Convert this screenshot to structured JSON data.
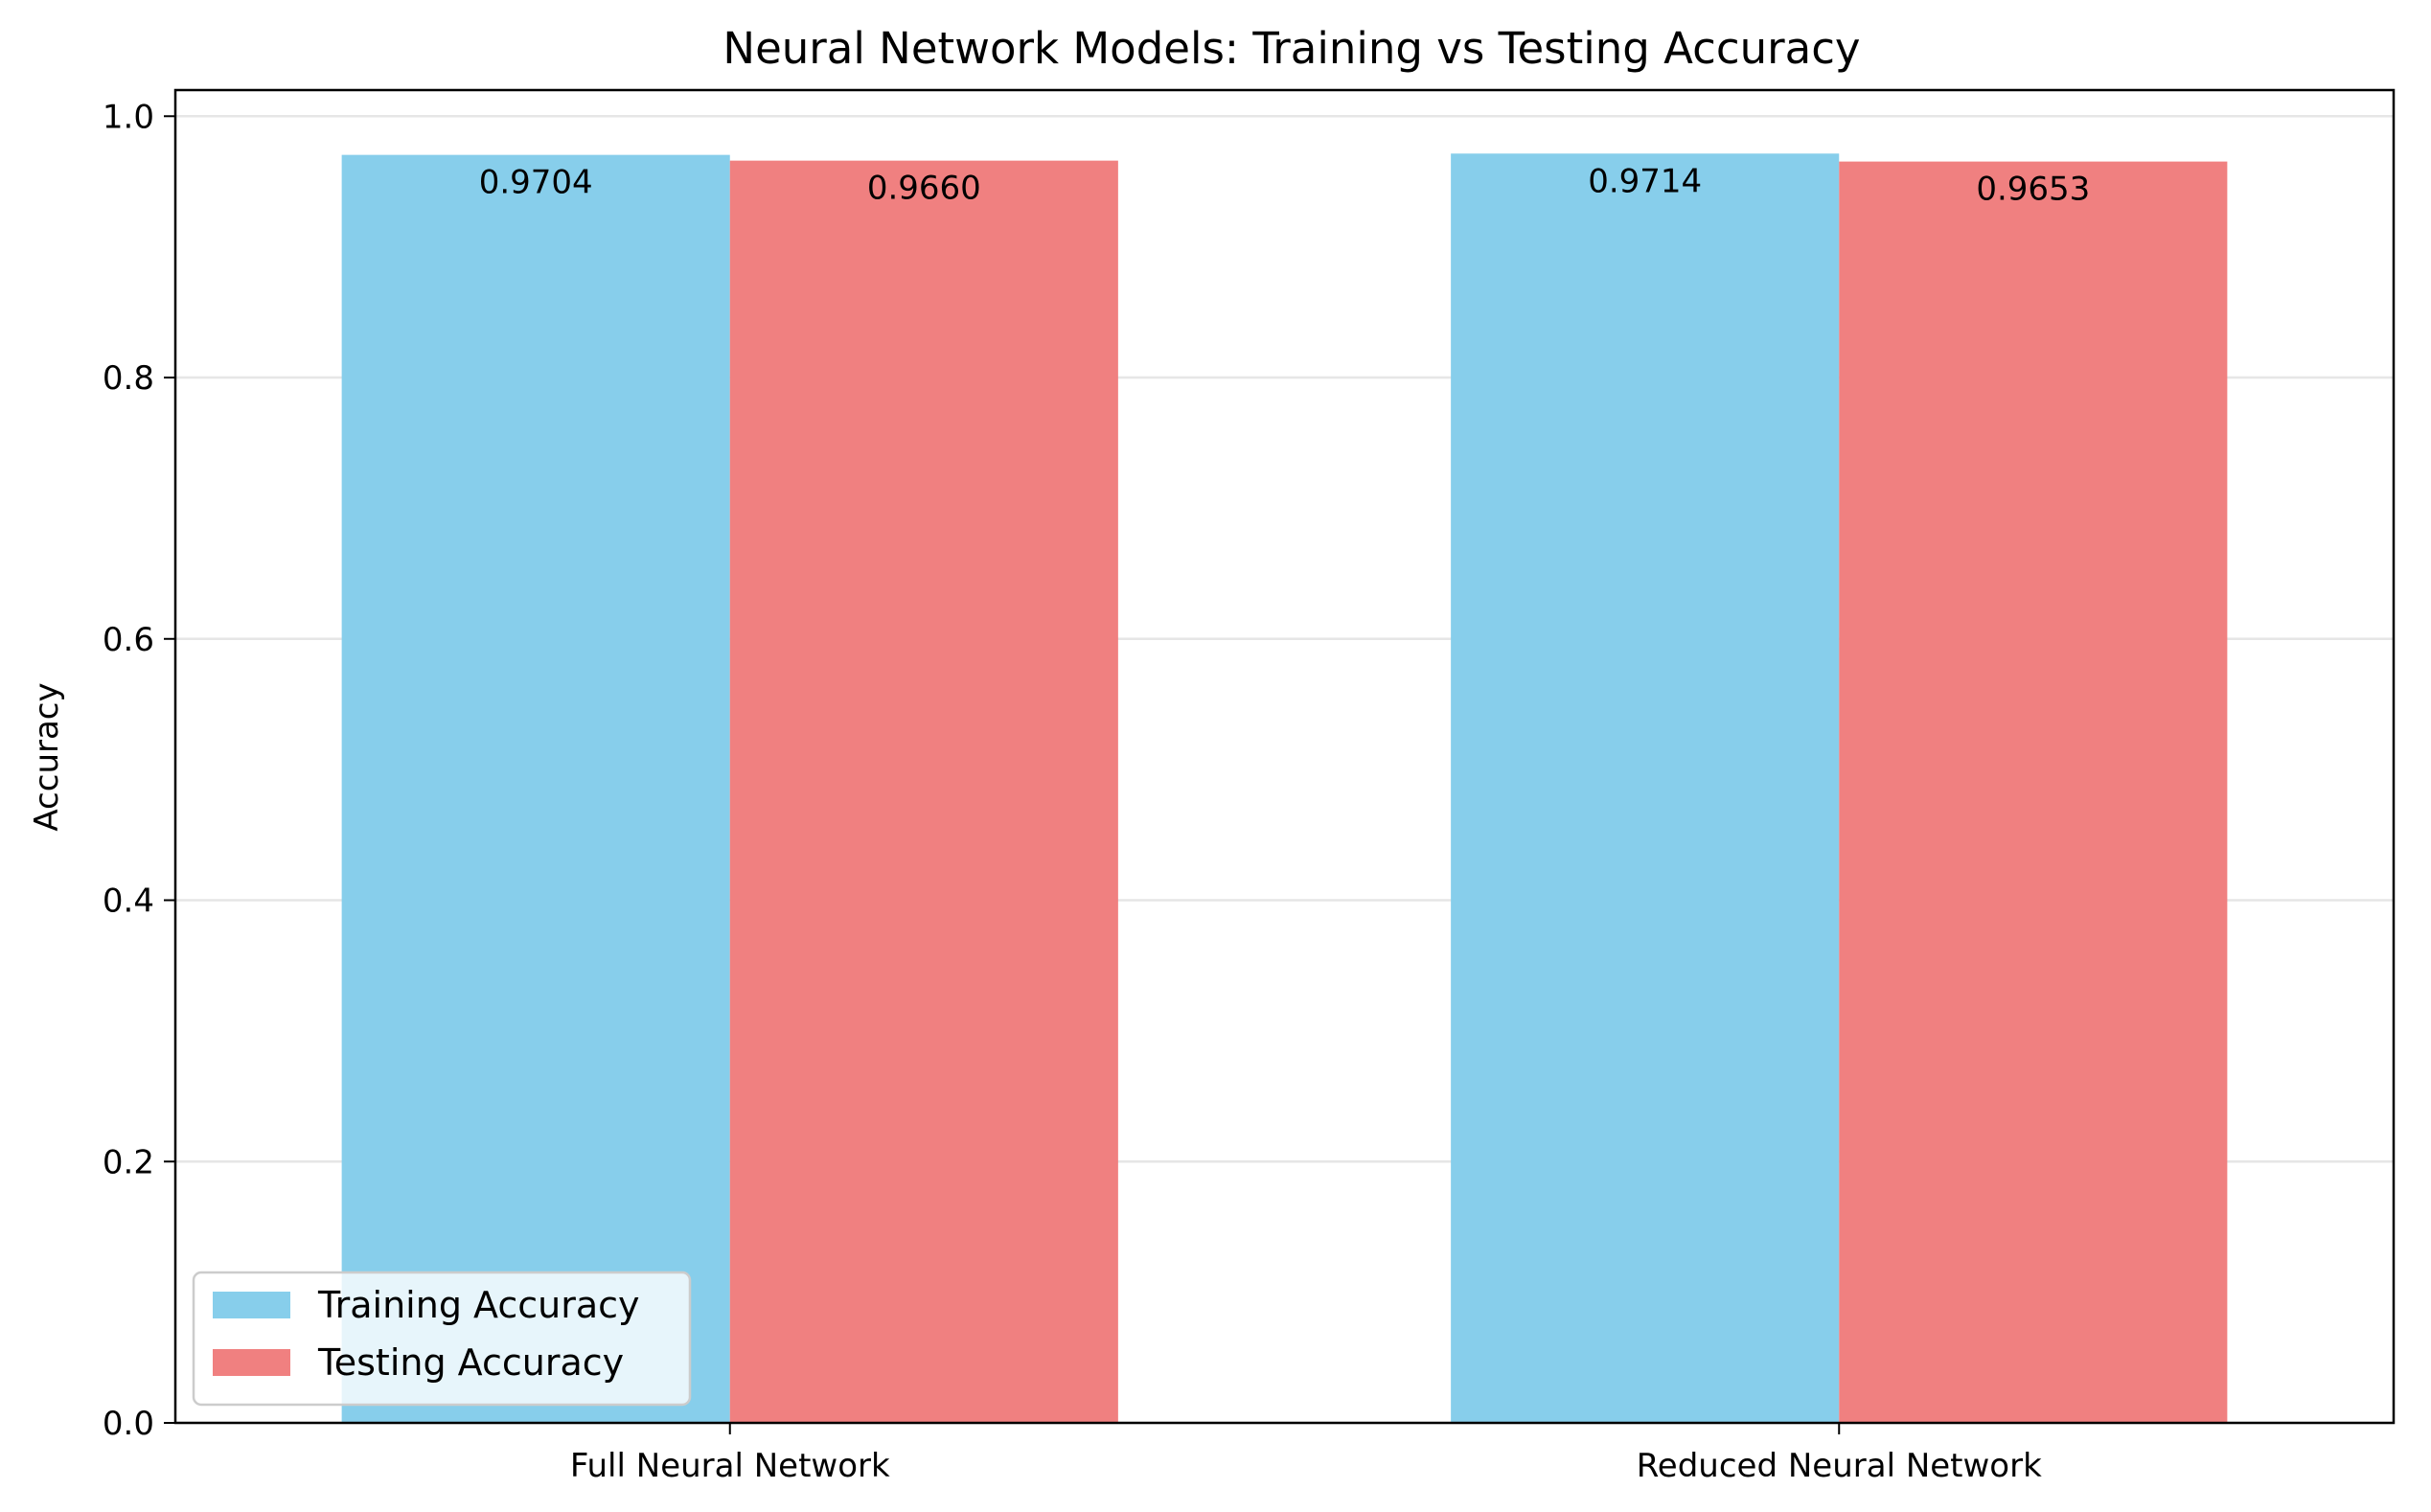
{
  "chart_data": {
    "type": "bar",
    "title": "Neural Network Models: Training vs Testing Accuracy",
    "xlabel": "",
    "ylabel": "Accuracy",
    "categories": [
      "Full Neural Network",
      "Reduced Neural Network"
    ],
    "series": [
      {
        "name": "Training Accuracy",
        "values": [
          0.9704,
          0.9714
        ],
        "labels": [
          "0.9704",
          "0.9714"
        ],
        "color": "#87CEEB"
      },
      {
        "name": "Testing Accuracy",
        "values": [
          0.966,
          0.9653
        ],
        "labels": [
          "0.9660",
          "0.9653"
        ],
        "color": "#F08080"
      }
    ],
    "ylim": [
      0,
      1.02
    ],
    "yticks": [
      0.0,
      0.2,
      0.4,
      0.6,
      0.8,
      1.0
    ],
    "ytick_labels": [
      "0.0",
      "0.2",
      "0.4",
      "0.6",
      "0.8",
      "1.0"
    ],
    "grid": "y",
    "legend_position": "lower-left"
  }
}
